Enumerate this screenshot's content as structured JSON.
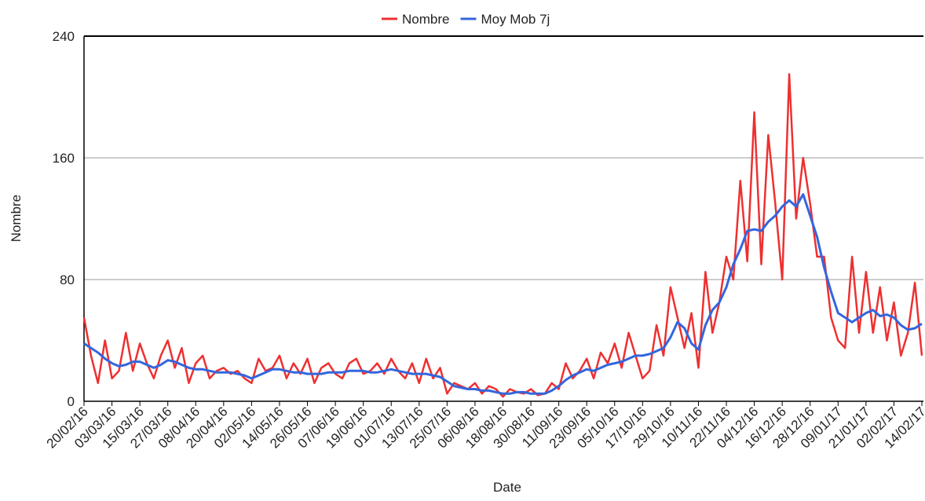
{
  "chart_data": {
    "type": "line",
    "x_label": "Date",
    "y_label": "Nombre",
    "categories": [
      "20/02/16",
      null,
      null,
      null,
      "03/03/16",
      null,
      null,
      null,
      "15/03/16",
      null,
      null,
      null,
      "27/03/16",
      null,
      null,
      null,
      "08/04/16",
      null,
      null,
      null,
      "20/04/16",
      null,
      null,
      null,
      "02/05/16",
      null,
      null,
      null,
      "14/05/16",
      null,
      null,
      null,
      "26/05/16",
      null,
      null,
      null,
      "07/06/16",
      null,
      null,
      null,
      "19/06/16",
      null,
      null,
      null,
      "01/07/16",
      null,
      null,
      null,
      "13/07/16",
      null,
      null,
      null,
      "25/07/16",
      null,
      null,
      null,
      "06/08/16",
      null,
      null,
      null,
      "18/08/16",
      null,
      null,
      null,
      "30/08/16",
      null,
      null,
      null,
      "11/09/16",
      null,
      null,
      null,
      "23/09/16",
      null,
      null,
      null,
      "05/10/16",
      null,
      null,
      null,
      "17/10/16",
      null,
      null,
      null,
      "29/10/16",
      null,
      null,
      null,
      "10/11/16",
      null,
      null,
      null,
      "22/11/16",
      null,
      null,
      null,
      "04/12/16",
      null,
      null,
      null,
      "16/12/16",
      null,
      null,
      null,
      "28/12/16",
      null,
      null,
      null,
      "09/01/17",
      null,
      null,
      null,
      "21/01/17",
      null,
      null,
      null,
      "02/02/17",
      null,
      null,
      null,
      "14/02/17"
    ],
    "series": [
      {
        "name": "Nombre",
        "color": "#ee3030",
        "values": [
          55,
          30,
          12,
          40,
          15,
          20,
          45,
          20,
          38,
          25,
          15,
          30,
          40,
          22,
          35,
          12,
          25,
          30,
          15,
          20,
          22,
          18,
          20,
          15,
          12,
          28,
          20,
          22,
          30,
          15,
          25,
          18,
          28,
          12,
          22,
          25,
          18,
          15,
          25,
          28,
          18,
          20,
          25,
          18,
          28,
          20,
          15,
          25,
          12,
          28,
          15,
          22,
          5,
          12,
          10,
          8,
          12,
          5,
          10,
          8,
          3,
          8,
          6,
          5,
          8,
          4,
          5,
          12,
          8,
          25,
          15,
          20,
          28,
          15,
          32,
          25,
          38,
          22,
          45,
          30,
          15,
          20,
          50,
          30,
          75,
          55,
          35,
          58,
          22,
          85,
          45,
          65,
          95,
          80,
          145,
          92,
          190,
          90,
          175,
          130,
          80,
          215,
          120,
          160,
          130,
          95,
          95,
          55,
          40,
          35,
          95,
          45,
          85,
          45,
          75,
          40,
          65,
          30,
          45,
          78,
          30
        ]
      },
      {
        "name": "Moy Mob 7j",
        "color": "#3366dd",
        "values": [
          38,
          35,
          32,
          28,
          25,
          23,
          24,
          26,
          26,
          24,
          22,
          24,
          27,
          26,
          24,
          22,
          21,
          21,
          20,
          19,
          19,
          19,
          18,
          17,
          15,
          17,
          19,
          21,
          21,
          20,
          19,
          19,
          18,
          18,
          18,
          19,
          19,
          19,
          20,
          20,
          20,
          19,
          19,
          20,
          21,
          20,
          19,
          18,
          18,
          18,
          17,
          16,
          13,
          10,
          9,
          8,
          8,
          7,
          7,
          6,
          5,
          5,
          6,
          6,
          5,
          5,
          5,
          7,
          10,
          14,
          17,
          19,
          21,
          20,
          22,
          24,
          25,
          26,
          28,
          30,
          30,
          31,
          33,
          35,
          42,
          52,
          48,
          38,
          34,
          50,
          60,
          65,
          75,
          90,
          100,
          112,
          113,
          112,
          118,
          122,
          128,
          132,
          128,
          136,
          122,
          108,
          88,
          72,
          58,
          55,
          52,
          55,
          58,
          60,
          56,
          57,
          55,
          50,
          47,
          48,
          51
        ]
      }
    ],
    "ylim": [
      0,
      240
    ],
    "yticks": [
      0,
      80,
      160,
      240
    ],
    "grid": true,
    "legend": "top"
  }
}
